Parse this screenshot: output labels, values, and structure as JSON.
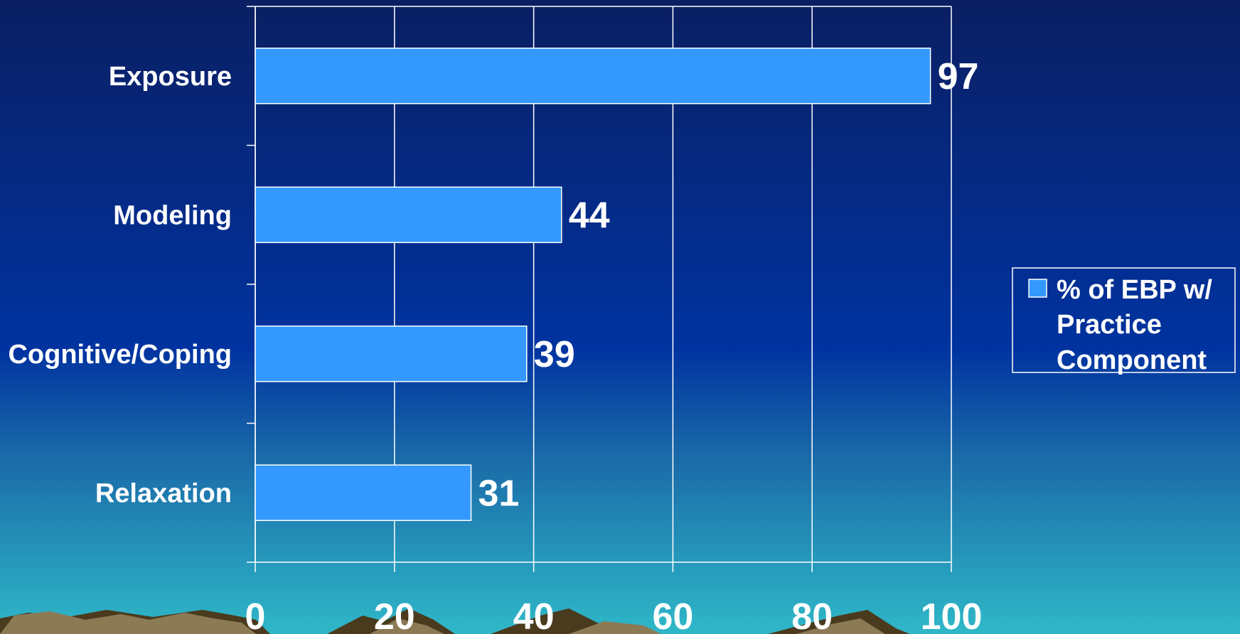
{
  "chart_data": {
    "type": "bar",
    "orientation": "horizontal",
    "categories": [
      "Exposure",
      "Modeling",
      "Cognitive/Coping",
      "Relaxation"
    ],
    "series": [
      {
        "name": "% of EBP w/ Practice Component",
        "values": [
          97,
          44,
          39,
          31
        ]
      }
    ],
    "xlim": [
      0,
      100
    ],
    "x_ticks": [
      "0",
      "20",
      "40",
      "60",
      "80",
      "100"
    ],
    "grid": true,
    "legend": {
      "placement": "right",
      "lines": [
        "% of EBP w/",
        "Practice",
        "Component"
      ]
    },
    "colors": {
      "bar_fill": "#3399ff",
      "bar_stroke": "#ffffff",
      "gridline": "#ffffff",
      "text": "#ffffff",
      "background_top": "#0a1f63",
      "background_mid": "#0033a0",
      "background_bottom": "#2fb8c8",
      "mountain_dark": "#4a3b1e",
      "mountain_light": "#8c7a55"
    }
  }
}
